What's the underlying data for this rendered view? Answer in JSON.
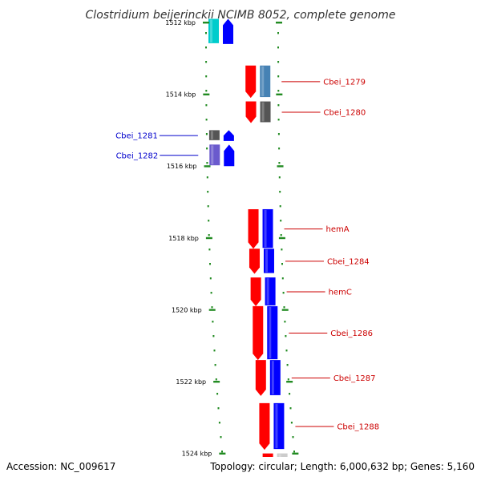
{
  "title": "Clostridium beijerinckii NCIMB 8052, complete genome",
  "footer": {
    "accession": "Accession: NC_009617",
    "topology": "Topology: circular; Length: 6,000,632 bp; Genes: 5,160"
  },
  "colors": {
    "forward": "#ff0000",
    "reverse": "#0000ff",
    "label_forward": "#cc0000",
    "label_reverse": "#0000cc",
    "tick": "#228b22",
    "backbone": "#888888"
  },
  "axis": {
    "unit": "kbp",
    "ticks": [
      {
        "value": 1512,
        "label": "1512 kbp"
      },
      {
        "value": 1514,
        "label": "1514 kbp"
      },
      {
        "value": 1516,
        "label": "1516 kbp"
      },
      {
        "value": 1518,
        "label": "1518 kbp"
      },
      {
        "value": 1520,
        "label": "1520 kbp"
      },
      {
        "value": 1522,
        "label": "1522 kbp"
      },
      {
        "value": 1524,
        "label": "1524 kbp"
      }
    ]
  },
  "genes": [
    {
      "label": "",
      "strand": "reverse",
      "start": 1511.9,
      "end": 1512.6,
      "color": "#00cccc"
    },
    {
      "label": "Cbei_1279",
      "strand": "forward",
      "start": 1513.2,
      "end": 1514.1,
      "color": "#4682b4"
    },
    {
      "label": "Cbei_1280",
      "strand": "forward",
      "start": 1514.2,
      "end": 1514.8,
      "color": "#555555"
    },
    {
      "label": "Cbei_1281",
      "strand": "reverse",
      "start": 1515.0,
      "end": 1515.3,
      "color": "#555555"
    },
    {
      "label": "Cbei_1282",
      "strand": "reverse",
      "start": 1515.4,
      "end": 1516.0,
      "color": "#6a5acd"
    },
    {
      "label": "hemA",
      "strand": "forward",
      "start": 1517.2,
      "end": 1518.3,
      "color": "#0000ff"
    },
    {
      "label": "Cbei_1284",
      "strand": "forward",
      "start": 1518.3,
      "end": 1519.0,
      "color": "#0000ff"
    },
    {
      "label": "hemC",
      "strand": "forward",
      "start": 1519.1,
      "end": 1519.9,
      "color": "#0000ff"
    },
    {
      "label": "Cbei_1286",
      "strand": "forward",
      "start": 1519.9,
      "end": 1521.4,
      "color": "#0000ff"
    },
    {
      "label": "Cbei_1287",
      "strand": "forward",
      "start": 1521.4,
      "end": 1522.4,
      "color": "#0000ff"
    },
    {
      "label": "Cbei_1288",
      "strand": "forward",
      "start": 1522.6,
      "end": 1523.9,
      "color": "#0000ff"
    },
    {
      "label": "",
      "strand": "forward",
      "start": 1524.0,
      "end": 1524.6,
      "color": "#cccccc"
    }
  ]
}
